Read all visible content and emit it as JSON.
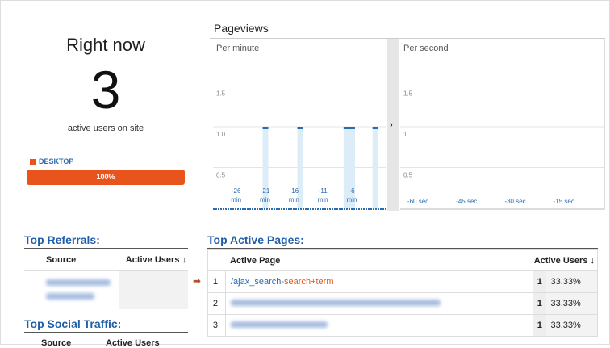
{
  "realtime": {
    "title": "Right now",
    "count": "3",
    "subtitle": "active users on site",
    "device": {
      "label": "DESKTOP",
      "percent": 100,
      "percent_label": "100%",
      "color": "#e8541c"
    }
  },
  "pageviews": {
    "title": "Pageviews"
  },
  "chart_data": [
    {
      "type": "bar",
      "title": "Per minute",
      "ylim": [
        0,
        2
      ],
      "yticks": [
        "0.5",
        "1.0",
        "1.5"
      ],
      "xticks": [
        {
          "v": -26,
          "l1": "-26",
          "l2": "min"
        },
        {
          "v": -21,
          "l1": "-21",
          "l2": "min"
        },
        {
          "v": -16,
          "l1": "-16",
          "l2": "min"
        },
        {
          "v": -11,
          "l1": "-11",
          "l2": "min"
        },
        {
          "v": -6,
          "l1": "-6",
          "l2": "min"
        }
      ],
      "x": [
        -21,
        -15,
        -7,
        -6,
        -2
      ],
      "values": [
        1,
        1,
        1,
        1,
        1
      ],
      "xrange": [
        -30,
        0
      ]
    },
    {
      "type": "bar",
      "title": "Per second",
      "ylim": [
        0,
        2
      ],
      "yticks": [
        "0.5",
        "1",
        "1.5"
      ],
      "xticks": [
        {
          "v": -60,
          "l1": "-60 sec"
        },
        {
          "v": -45,
          "l1": "-45 sec"
        },
        {
          "v": -30,
          "l1": "-30 sec"
        },
        {
          "v": -15,
          "l1": "-15 sec"
        }
      ],
      "x": [],
      "values": [],
      "xrange": [
        -63,
        0
      ]
    }
  ],
  "referrals": {
    "title": "Top Referrals:",
    "col_source": "Source",
    "col_users": "Active Users ↓"
  },
  "social": {
    "title": "Top Social Traffic:",
    "col_source": "Source",
    "col_users": "Active Users"
  },
  "pages": {
    "title": "Top Active Pages:",
    "col_page": "Active Page",
    "col_users": "Active Users ↓",
    "rows": [
      {
        "n": "1.",
        "page_a": "/ajax_search-",
        "page_b": "search+term",
        "users": "1",
        "pct": "33.33%"
      },
      {
        "n": "2.",
        "page_a": "",
        "page_b": "",
        "users": "1",
        "pct": "33.33%"
      },
      {
        "n": "3.",
        "page_a": "",
        "page_b": "",
        "users": "1",
        "pct": "33.33%"
      }
    ]
  }
}
